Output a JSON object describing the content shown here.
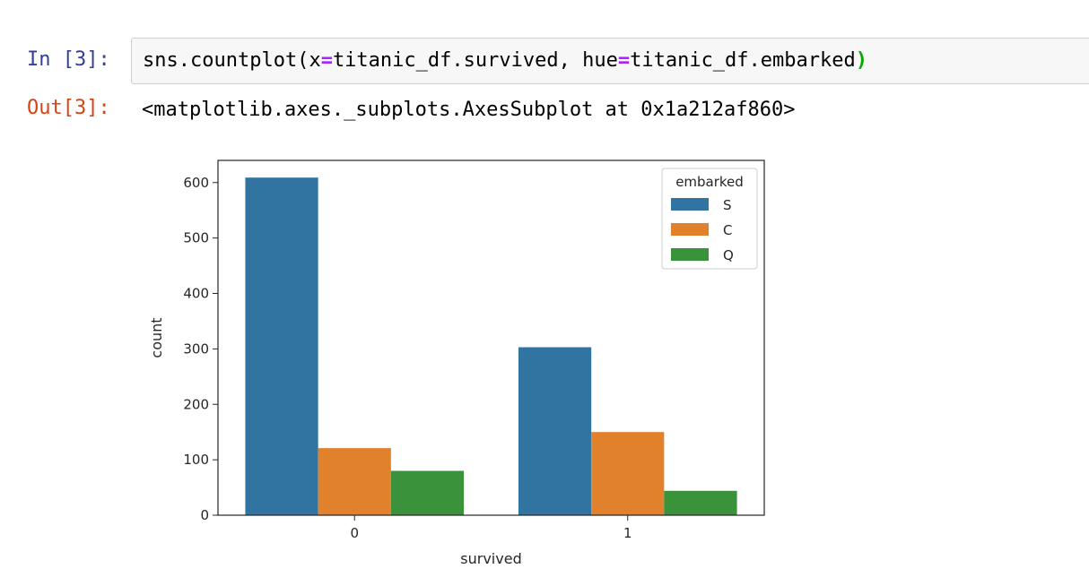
{
  "cell": {
    "in_prompt": "In [3]:",
    "out_prompt": "Out[3]:",
    "code": {
      "part1": "sns.countplot(",
      "kw1": "x",
      "eq1": "=",
      "part2": "titanic_df.survived, ",
      "kw2": "hue",
      "eq2": "=",
      "part3": "titanic_df.embarked",
      "close": ")"
    },
    "output": "<matplotlib.axes._subplots.AxesSubplot at 0x1a212af860>"
  },
  "chart_data": {
    "type": "bar",
    "categories": [
      "0",
      "1"
    ],
    "series": [
      {
        "name": "S",
        "color": "#3274a1",
        "values": [
          609,
          303
        ]
      },
      {
        "name": "C",
        "color": "#e1812c",
        "values": [
          121,
          150
        ]
      },
      {
        "name": "Q",
        "color": "#3a923a",
        "values": [
          80,
          44
        ]
      }
    ],
    "xlabel": "survived",
    "ylabel": "count",
    "ylim": [
      0,
      640
    ],
    "yticks": [
      0,
      100,
      200,
      300,
      400,
      500,
      600
    ],
    "legend": {
      "title": "embarked",
      "placement": "top-right"
    },
    "grid": false
  }
}
